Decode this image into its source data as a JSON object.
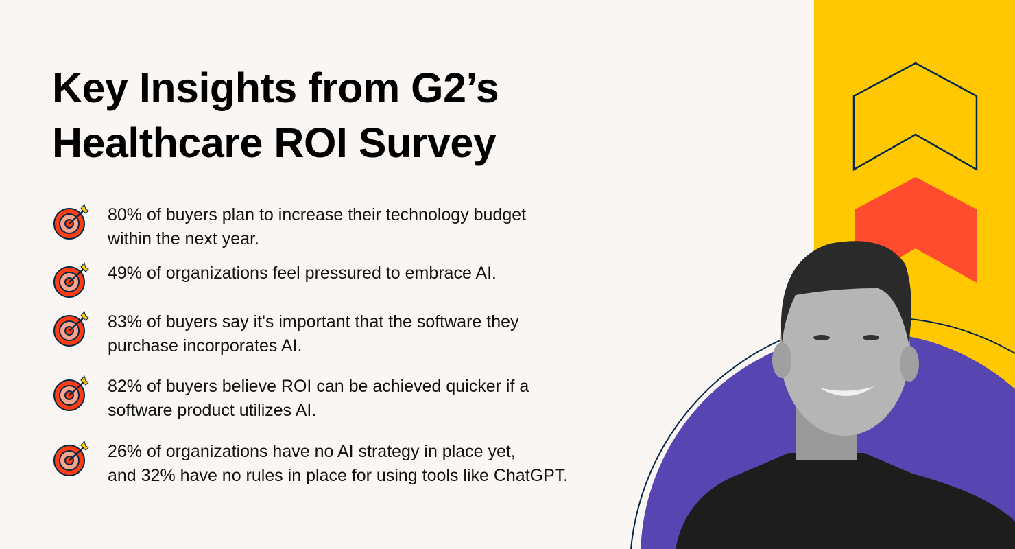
{
  "title_line1": "Key Insights from G2’s",
  "title_line2": "Healthcare ROI Survey",
  "insights": [
    {
      "line1": "80% of buyers plan to increase their technology budget",
      "line2": "within the next year.",
      "icon": "target-icon"
    },
    {
      "line1": "49% of organizations feel pressured to embrace AI.",
      "line2": "",
      "icon": "target-icon"
    },
    {
      "line1": "83% of buyers say it's important that the software they",
      "line2": "purchase incorporates AI.",
      "icon": "target-icon"
    },
    {
      "line1": "82% of buyers believe ROI can be achieved quicker if a",
      "line2": "software product utilizes AI.",
      "icon": "target-icon"
    },
    {
      "line1": "26% of organizations have no AI strategy in place yet,",
      "line2": "and 32% have no rules in place for using tools like ChatGPT.",
      "icon": "target-icon"
    }
  ],
  "colors": {
    "background": "#f9f6f3",
    "yellow": "#ffc800",
    "red": "#ff4b2e",
    "purple": "#5746b2",
    "navy": "#062846"
  }
}
